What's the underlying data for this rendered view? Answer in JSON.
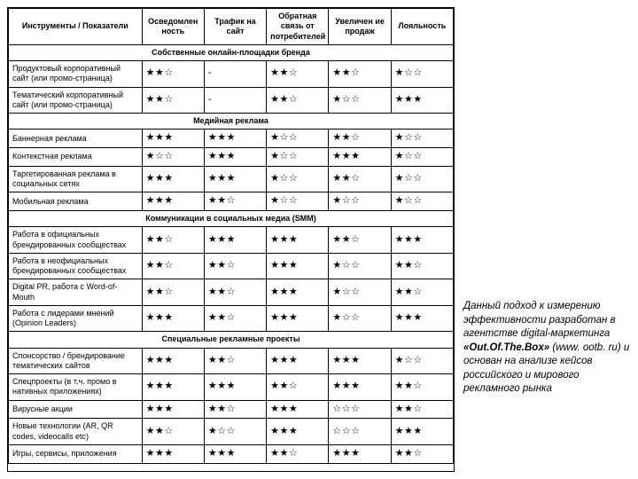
{
  "columns": [
    "Инструменты / Показатели",
    "Осведомлен ность",
    "Трафик на сайт",
    "Обратная связь от потребителей",
    "Увеличен ие продаж",
    "Лояльность"
  ],
  "sections": [
    {
      "title": "Собственные онлайн-площадки бренда",
      "rows": [
        {
          "label": "Продуктовый корпоративный сайт (или промо-страница)",
          "r": [
            "★★☆",
            "-",
            "★★☆",
            "★★☆",
            "★☆☆"
          ]
        },
        {
          "label": "Тематический корпоративный сайт (или промо-страница)",
          "r": [
            "★★☆",
            "-",
            "★★☆",
            "★☆☆",
            "★★★"
          ]
        }
      ]
    },
    {
      "title": "Медийная реклама",
      "rows": [
        {
          "label": "Баннерная реклама",
          "r": [
            "★★★",
            "★★★",
            "★☆☆",
            "★★☆",
            "★☆☆"
          ]
        },
        {
          "label": "Контекстная реклама",
          "r": [
            "★☆☆",
            "★★★",
            "★☆☆",
            "★★★",
            "★☆☆"
          ]
        },
        {
          "label": "Таргетированная реклама в социальных сетях",
          "r": [
            "★★★",
            "★★★",
            "★☆☆",
            "★★☆",
            "★☆☆"
          ]
        },
        {
          "label": "Мобильная реклама",
          "r": [
            "★★★",
            "★★☆",
            "★☆☆",
            "★☆☆",
            "★☆☆"
          ]
        }
      ]
    },
    {
      "title": "Коммуникации в социальных медиа (SMM)",
      "rows": [
        {
          "label": "Работа в официальных брендированных сообществах",
          "r": [
            "★★☆",
            "★★★",
            "★★★",
            "★★☆",
            "★★★"
          ]
        },
        {
          "label": "Работа в неофициальных брендированных сообществах",
          "r": [
            "★★☆",
            "★★☆",
            "★★★",
            "★☆☆",
            "★★☆"
          ]
        },
        {
          "label": "Digital PR, работа с Word-of-Mouth",
          "r": [
            "★★☆",
            "★★☆",
            "★★★",
            "★☆☆",
            "★★☆"
          ]
        },
        {
          "label": "Работа с лидерами мнений (Opinion Leaders)",
          "r": [
            "★★★",
            "★★☆",
            "★★★",
            "★☆☆",
            "★★★"
          ]
        }
      ]
    },
    {
      "title": "Специальные рекламные проекты",
      "rows": [
        {
          "label": "Спонсорство / брендирование тематических сайтов",
          "r": [
            "★★★",
            "★★☆",
            "★★★",
            "★★★",
            "★☆☆"
          ]
        },
        {
          "label": "Спецпроекты (в т.ч. промо в нативных приложениях)",
          "r": [
            "★★★",
            "★★★",
            "★★☆",
            "★★★",
            "★★☆"
          ]
        },
        {
          "label": "Вирусные акции",
          "r": [
            "★★★",
            "★★☆",
            "★★★",
            "☆☆☆",
            "★★☆"
          ]
        },
        {
          "label": "Новые технологии (AR, QR codes, videocalls etc)",
          "r": [
            "★★☆",
            "★☆☆",
            "★★★",
            "☆☆☆",
            "★★★"
          ]
        },
        {
          "label": "Игры, сервисы, приложения",
          "r": [
            "★★★",
            "★★★",
            "★★☆",
            "★★★",
            "★★☆"
          ]
        }
      ]
    }
  ],
  "caption": {
    "line1": "Данный подход к измерению эффективности разработан в агентстве digital-маркетинга ",
    "bold": "«Out.Of.The.Box»",
    "line2": " (www. ootb. ru) и основан на анализе кейсов российского и мирового рекламного рынка"
  }
}
